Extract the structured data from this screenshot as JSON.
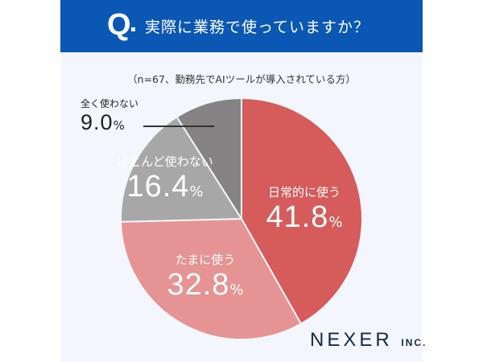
{
  "header": {
    "q_label": "Q",
    "title": "実際に業務で使っていますか？"
  },
  "note": "（n=67、勤務先でAIツールが導入されている方）",
  "chart_data": {
    "type": "pie",
    "title": "実際に業務で使っていますか？",
    "categories": [
      "日常的に使う",
      "たまに使う",
      "ほとんど使わない",
      "全く使わない"
    ],
    "values": [
      41.8,
      32.8,
      16.4,
      9.0
    ],
    "value_labels": [
      "41.8",
      "32.8",
      "16.4",
      "9.0"
    ],
    "unit": "%",
    "colors": [
      "#d65b5b",
      "#e59393",
      "#a7a7a7",
      "#858383"
    ],
    "start": "top",
    "direction": "clockwise"
  },
  "logo": {
    "name": "NEXER",
    "suffix": "INC."
  }
}
